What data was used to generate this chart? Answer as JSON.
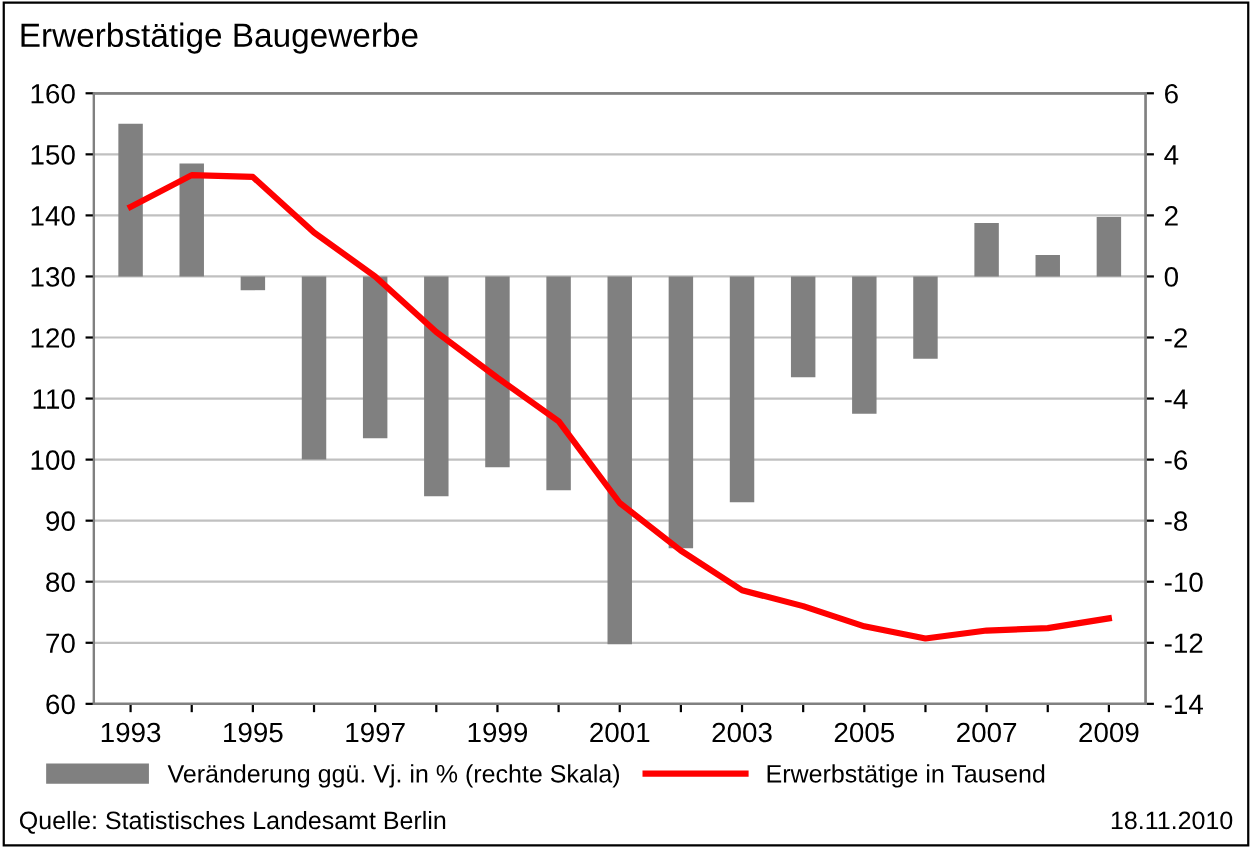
{
  "chart_data": {
    "type": "bar",
    "title": "Erwerbstätige Baugewerbe",
    "categories": [
      "1993",
      null,
      "1995",
      null,
      "1997",
      null,
      "1999",
      null,
      "2001",
      null,
      "2003",
      null,
      "2005",
      null,
      "2007",
      null,
      "2009"
    ],
    "series": [
      {
        "name": "Veränderung ggü. Vj. in % (rechte Skala)",
        "axis": "y2",
        "color": "#808080",
        "values": [
          5.0,
          3.7,
          -0.45,
          -6.0,
          -5.3,
          -7.2,
          -6.25,
          -7.0,
          -12.05,
          -8.9,
          -7.4,
          -3.3,
          -4.5,
          -2.7,
          1.75,
          0.7,
          1.95
        ]
      },
      {
        "name": "Erwerbstätige in Tausend",
        "type": "line",
        "axis": "y",
        "color": "#ff0000",
        "values": [
          141.4,
          146.6,
          146.3,
          137.2,
          130,
          120.9,
          113.4,
          106.3,
          92.9,
          85.1,
          78.6,
          76,
          72.7,
          70.7,
          72,
          72.4,
          74
        ]
      }
    ],
    "ylim": [
      60,
      160
    ],
    "yticks": [
      60,
      70,
      80,
      90,
      100,
      110,
      120,
      130,
      140,
      150,
      160
    ],
    "y2lim": [
      -14,
      6
    ],
    "y2ticks": [
      -14,
      -12,
      -10,
      -8,
      -6,
      -4,
      -2,
      0,
      2,
      4,
      6
    ],
    "grid": "y",
    "legend": "bottom",
    "marker": "none",
    "line_style": "solid",
    "annotations": [
      "Quelle: Statistisches Landesamt Berlin",
      "18.11.2010"
    ]
  }
}
